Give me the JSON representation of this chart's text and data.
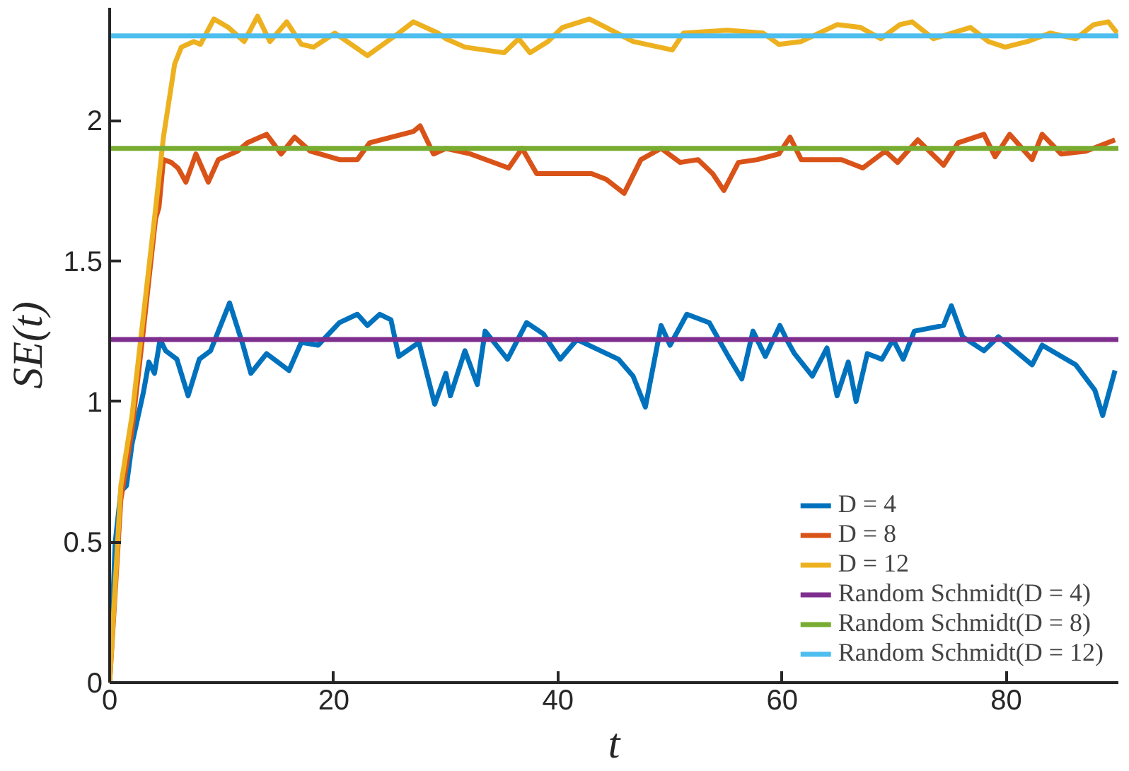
{
  "chart_data": {
    "type": "line",
    "xlabel": "t",
    "ylabel": "SE(t)",
    "xlim": [
      0,
      90
    ],
    "ylim": [
      0,
      2.4
    ],
    "xticks": [
      0,
      20,
      40,
      60,
      80
    ],
    "yticks": [
      0,
      0.5,
      1,
      1.5,
      2
    ],
    "grid": false,
    "legend": "bottom right",
    "marker": "none",
    "line_style": "solid",
    "series": [
      {
        "name": "D = 4",
        "color": "#0072bd",
        "x": [
          0,
          0.5,
          1,
          1.5,
          2,
          3,
          3.5,
          4,
          4.5,
          5,
          6,
          7,
          8,
          9,
          10.7,
          11.9,
          12.6,
          14,
          16,
          17.1,
          18.6,
          20.5,
          22.1,
          23,
          24.1,
          25.1,
          25.8,
          27.6,
          29,
          30,
          30.4,
          31.7,
          32.8,
          33.5,
          35.5,
          37.2,
          38.7,
          40.2,
          41.7,
          45.4,
          46.7,
          47.8,
          49.2,
          50,
          51.5,
          53.5,
          55.2,
          56.4,
          57.4,
          58.5,
          59.8,
          60.4,
          61.1,
          62.7,
          64,
          64.9,
          65.9,
          66.6,
          67.6,
          68.9,
          69.9,
          70.8,
          71.8,
          74.4,
          75.1,
          76.1,
          78,
          79.3,
          82.3,
          83.2,
          86.2,
          87.9,
          88.6,
          89.7
        ],
        "values": [
          0,
          0.5,
          0.68,
          0.7,
          0.85,
          1.03,
          1.14,
          1.1,
          1.22,
          1.18,
          1.15,
          1.02,
          1.15,
          1.18,
          1.35,
          1.2,
          1.1,
          1.17,
          1.11,
          1.21,
          1.2,
          1.28,
          1.31,
          1.27,
          1.31,
          1.29,
          1.16,
          1.21,
          0.99,
          1.1,
          1.02,
          1.18,
          1.06,
          1.25,
          1.15,
          1.28,
          1.24,
          1.15,
          1.22,
          1.15,
          1.09,
          0.98,
          1.27,
          1.2,
          1.31,
          1.28,
          1.16,
          1.08,
          1.25,
          1.16,
          1.27,
          1.22,
          1.17,
          1.09,
          1.19,
          1.02,
          1.14,
          1.0,
          1.17,
          1.15,
          1.22,
          1.15,
          1.25,
          1.27,
          1.34,
          1.23,
          1.18,
          1.23,
          1.13,
          1.2,
          1.13,
          1.04,
          0.95,
          1.11
        ]
      },
      {
        "name": "D = 8",
        "color": "#d95319",
        "x": [
          0,
          1,
          2,
          3,
          4.1,
          4.4,
          4.8,
          5.5,
          6.1,
          6.8,
          7.7,
          8.8,
          9.7,
          11.4,
          12.3,
          14,
          15.3,
          16.5,
          17.9,
          20.5,
          22.1,
          23.2,
          27.1,
          27.7,
          28.9,
          30,
          32.2,
          35.6,
          36.8,
          38.1,
          43,
          44.3,
          45.9,
          47.4,
          49.2,
          50.9,
          52.5,
          53.8,
          54.8,
          56.1,
          57.8,
          59.7,
          60.7,
          61.7,
          65.3,
          67.2,
          69.2,
          70.3,
          72.1,
          74.4,
          75.7,
          78,
          79,
          80.3,
          82.3,
          83.2,
          84.9,
          87.1,
          89.7
        ],
        "values": [
          0,
          0.65,
          0.9,
          1.25,
          1.65,
          1.69,
          1.86,
          1.85,
          1.83,
          1.78,
          1.88,
          1.78,
          1.86,
          1.89,
          1.92,
          1.95,
          1.88,
          1.94,
          1.89,
          1.86,
          1.86,
          1.92,
          1.96,
          1.98,
          1.88,
          1.9,
          1.88,
          1.83,
          1.9,
          1.81,
          1.81,
          1.79,
          1.74,
          1.86,
          1.9,
          1.85,
          1.86,
          1.81,
          1.75,
          1.85,
          1.86,
          1.88,
          1.94,
          1.86,
          1.86,
          1.83,
          1.89,
          1.85,
          1.93,
          1.84,
          1.92,
          1.95,
          1.87,
          1.95,
          1.86,
          1.95,
          1.88,
          1.89,
          1.93
        ]
      },
      {
        "name": "D = 12",
        "color": "#edb120",
        "x": [
          0,
          1,
          2,
          3,
          4,
          4.8,
          5.8,
          6.4,
          7.5,
          8.1,
          9.3,
          10.6,
          12,
          13.2,
          14.3,
          15.8,
          17.1,
          18.2,
          20.1,
          23,
          25.8,
          27.1,
          29.3,
          30,
          31.7,
          35.2,
          36.5,
          37.5,
          39.1,
          40.4,
          42.8,
          44.3,
          46.7,
          50.2,
          51.2,
          55.1,
          58.3,
          59.7,
          61.7,
          64.9,
          67,
          68.8,
          70.5,
          71.6,
          73.5,
          76.8,
          78.4,
          79.9,
          81.9,
          83.9,
          86.2,
          87.8,
          89.1,
          89.9
        ],
        "values": [
          0,
          0.7,
          0.95,
          1.3,
          1.65,
          1.94,
          2.2,
          2.26,
          2.28,
          2.27,
          2.36,
          2.33,
          2.28,
          2.37,
          2.28,
          2.35,
          2.27,
          2.26,
          2.31,
          2.23,
          2.31,
          2.35,
          2.31,
          2.29,
          2.26,
          2.24,
          2.29,
          2.24,
          2.28,
          2.33,
          2.36,
          2.33,
          2.28,
          2.25,
          2.31,
          2.32,
          2.31,
          2.27,
          2.28,
          2.34,
          2.33,
          2.29,
          2.34,
          2.35,
          2.29,
          2.33,
          2.28,
          2.26,
          2.28,
          2.31,
          2.29,
          2.34,
          2.35,
          2.31
        ]
      },
      {
        "name": "Random Schmidt(D = 4)",
        "color": "#7e2f8e",
        "x": [
          0,
          90
        ],
        "values": [
          1.22,
          1.22
        ]
      },
      {
        "name": "Random Schmidt(D = 8)",
        "color": "#77ac30",
        "x": [
          0,
          90
        ],
        "values": [
          1.9,
          1.9
        ]
      },
      {
        "name": "Random Schmidt(D = 12)",
        "color": "#4dbeee",
        "x": [
          0,
          90
        ],
        "values": [
          2.3,
          2.3
        ]
      }
    ]
  }
}
